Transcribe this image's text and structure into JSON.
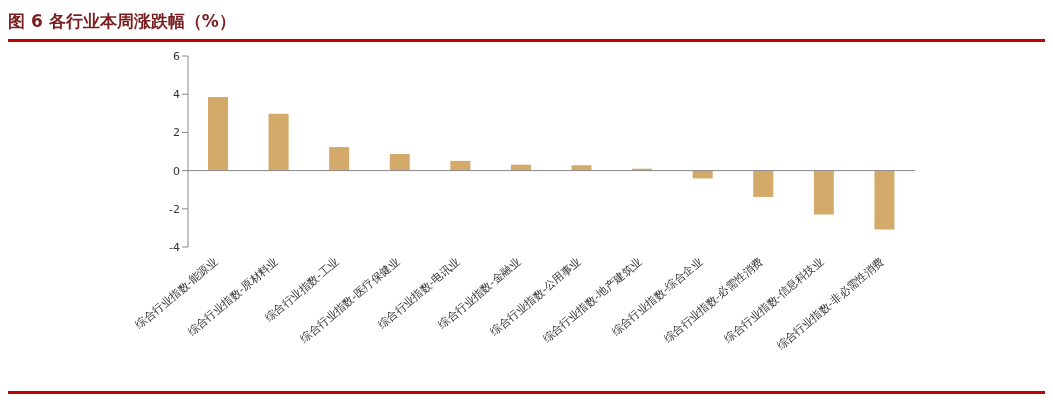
{
  "chart_data": {
    "type": "bar",
    "title": "图 6  各行业本周涨跌幅（%）",
    "categories": [
      "综合行业指数-能源业",
      "综合行业指数-原材料业",
      "综合行业指数-工业",
      "综合行业指数-医疗保健业",
      "综合行业指数-电讯业",
      "综合行业指数-金融业",
      "综合行业指数-公用事业",
      "综合行业指数-地产建筑业",
      "综合行业指数-综合企业",
      "综合行业指数-必需性消费",
      "综合行业指数-信息科技业",
      "综合行业指数-非必需性消费"
    ],
    "values": [
      3.85,
      2.97,
      1.23,
      0.87,
      0.51,
      0.31,
      0.28,
      0.1,
      -0.41,
      -1.38,
      -2.3,
      -3.08
    ],
    "color": "#d4aa6a",
    "ylim": [
      -4,
      6
    ],
    "yticks": [
      -4,
      -2,
      0,
      2,
      4,
      6
    ]
  }
}
